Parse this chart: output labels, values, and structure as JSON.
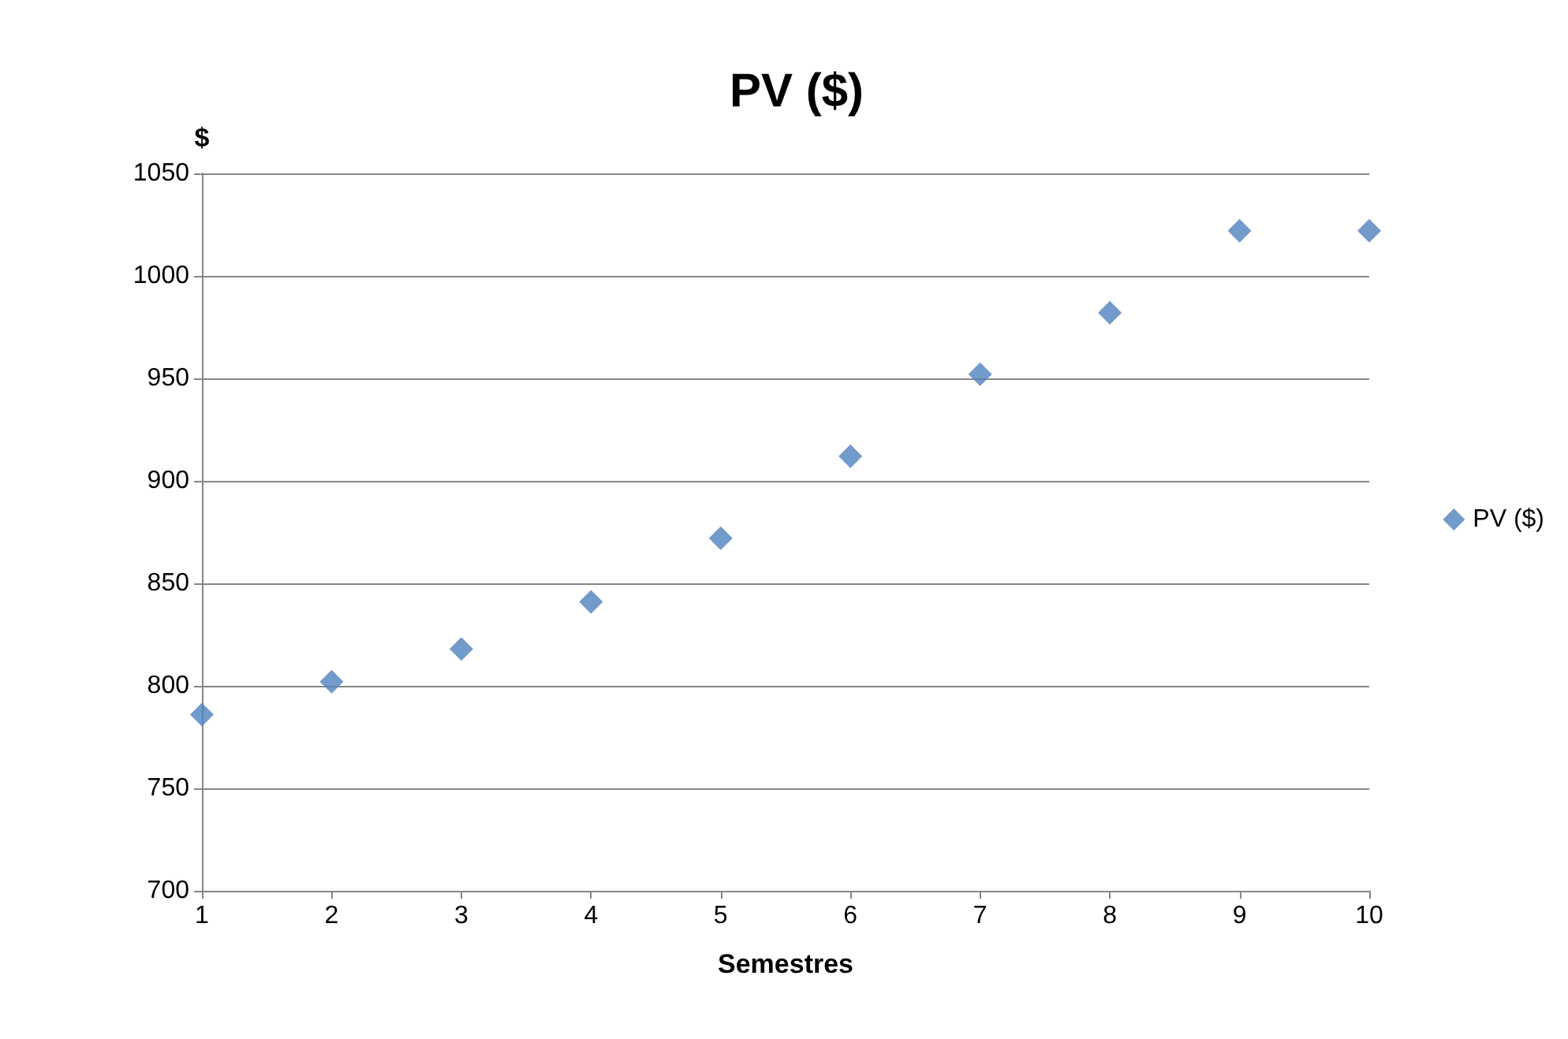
{
  "chart_data": {
    "type": "scatter",
    "title": "PV ($)",
    "xlabel": "Semestres",
    "ylabel": "$",
    "x": [
      1,
      2,
      3,
      4,
      5,
      6,
      7,
      8,
      9,
      10
    ],
    "series": [
      {
        "name": "PV ($)",
        "color": "#4f81bd",
        "values": [
          786,
          802,
          818,
          841,
          872,
          912,
          952,
          982,
          1022,
          1022
        ]
      }
    ],
    "xlim": [
      1,
      10
    ],
    "xticks": [
      1,
      2,
      3,
      4,
      5,
      6,
      7,
      8,
      9,
      10
    ],
    "ylim": [
      700,
      1050
    ],
    "yticks": [
      700,
      750,
      800,
      850,
      900,
      950,
      1000,
      1050
    ],
    "grid": "y",
    "legend": "right",
    "marker": "diamond"
  }
}
